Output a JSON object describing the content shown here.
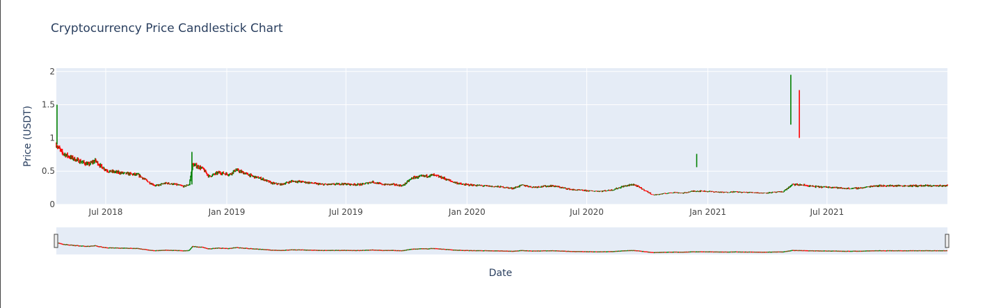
{
  "chart_data": {
    "type": "candlestick",
    "title": "Cryptocurrency Price Candlestick Chart",
    "xlabel": "Date",
    "ylabel": "Price (USDT)",
    "ylim": [
      0,
      2.05
    ],
    "yticks": [
      0,
      0.5,
      1,
      1.5,
      2
    ],
    "ytick_labels": [
      "0",
      "0.5",
      "1",
      "1.5",
      "2"
    ],
    "x_range": [
      "2018-04-17",
      "2021-12-31"
    ],
    "xticks": [
      "2018-07-01",
      "2019-01-01",
      "2019-07-01",
      "2020-01-01",
      "2020-07-01",
      "2021-01-01",
      "2021-07-01"
    ],
    "xtick_labels": [
      "Jul 2018",
      "Jan 2019",
      "Jul 2019",
      "Jan 2020",
      "Jul 2020",
      "Jan 2021",
      "Jul 2021"
    ],
    "increasing_color": "#008000",
    "decreasing_color": "#ff0000",
    "grid": true,
    "rangeslider": true,
    "series": [
      {
        "price_path": [
          [
            "2018-04-17",
            0.9
          ],
          [
            "2018-04-25",
            0.78
          ],
          [
            "2018-05-10",
            0.7
          ],
          [
            "2018-05-25",
            0.64
          ],
          [
            "2018-06-05",
            0.6
          ],
          [
            "2018-06-15",
            0.66
          ],
          [
            "2018-06-25",
            0.56
          ],
          [
            "2018-07-05",
            0.5
          ],
          [
            "2018-07-20",
            0.48
          ],
          [
            "2018-08-05",
            0.46
          ],
          [
            "2018-08-20",
            0.44
          ],
          [
            "2018-09-05",
            0.33
          ],
          [
            "2018-09-15",
            0.28
          ],
          [
            "2018-10-01",
            0.32
          ],
          [
            "2018-10-15",
            0.3
          ],
          [
            "2018-10-28",
            0.27
          ],
          [
            "2018-11-05",
            0.3
          ],
          [
            "2018-11-10",
            0.6
          ],
          [
            "2018-11-25",
            0.54
          ],
          [
            "2018-12-05",
            0.42
          ],
          [
            "2018-12-20",
            0.48
          ],
          [
            "2019-01-05",
            0.45
          ],
          [
            "2019-01-15",
            0.52
          ],
          [
            "2019-01-25",
            0.48
          ],
          [
            "2019-02-10",
            0.42
          ],
          [
            "2019-02-25",
            0.38
          ],
          [
            "2019-03-10",
            0.32
          ],
          [
            "2019-03-25",
            0.3
          ],
          [
            "2019-04-10",
            0.35
          ],
          [
            "2019-04-25",
            0.34
          ],
          [
            "2019-05-10",
            0.32
          ],
          [
            "2019-05-25",
            0.3
          ],
          [
            "2019-06-10",
            0.3
          ],
          [
            "2019-06-25",
            0.31
          ],
          [
            "2019-07-10",
            0.3
          ],
          [
            "2019-07-25",
            0.3
          ],
          [
            "2019-08-10",
            0.34
          ],
          [
            "2019-08-25",
            0.3
          ],
          [
            "2019-09-10",
            0.3
          ],
          [
            "2019-09-25",
            0.28
          ],
          [
            "2019-10-10",
            0.4
          ],
          [
            "2019-10-25",
            0.42
          ],
          [
            "2019-11-10",
            0.44
          ],
          [
            "2019-11-25",
            0.4
          ],
          [
            "2019-12-10",
            0.34
          ],
          [
            "2019-12-25",
            0.3
          ],
          [
            "2020-01-10",
            0.29
          ],
          [
            "2020-01-25",
            0.28
          ],
          [
            "2020-02-10",
            0.27
          ],
          [
            "2020-02-25",
            0.26
          ],
          [
            "2020-03-10",
            0.24
          ],
          [
            "2020-03-25",
            0.29
          ],
          [
            "2020-04-10",
            0.26
          ],
          [
            "2020-04-25",
            0.27
          ],
          [
            "2020-05-10",
            0.28
          ],
          [
            "2020-05-25",
            0.25
          ],
          [
            "2020-06-10",
            0.22
          ],
          [
            "2020-06-25",
            0.21
          ],
          [
            "2020-07-10",
            0.2
          ],
          [
            "2020-07-25",
            0.2
          ],
          [
            "2020-08-10",
            0.22
          ],
          [
            "2020-08-25",
            0.27
          ],
          [
            "2020-09-10",
            0.3
          ],
          [
            "2020-09-20",
            0.25
          ],
          [
            "2020-10-01",
            0.19
          ],
          [
            "2020-10-10",
            0.14
          ],
          [
            "2020-10-25",
            0.16
          ],
          [
            "2020-11-10",
            0.18
          ],
          [
            "2020-11-25",
            0.17
          ],
          [
            "2020-12-10",
            0.2
          ],
          [
            "2020-12-25",
            0.2
          ],
          [
            "2021-01-10",
            0.19
          ],
          [
            "2021-01-25",
            0.18
          ],
          [
            "2021-02-10",
            0.19
          ],
          [
            "2021-02-25",
            0.18
          ],
          [
            "2021-03-10",
            0.18
          ],
          [
            "2021-03-25",
            0.17
          ],
          [
            "2021-04-10",
            0.18
          ],
          [
            "2021-04-25",
            0.19
          ],
          [
            "2021-05-10",
            0.3
          ],
          [
            "2021-05-25",
            0.29
          ],
          [
            "2021-06-10",
            0.27
          ],
          [
            "2021-06-25",
            0.26
          ],
          [
            "2021-07-10",
            0.26
          ],
          [
            "2021-07-25",
            0.24
          ],
          [
            "2021-08-10",
            0.24
          ],
          [
            "2021-08-25",
            0.25
          ],
          [
            "2021-09-10",
            0.28
          ]
        ]
      }
    ]
  }
}
